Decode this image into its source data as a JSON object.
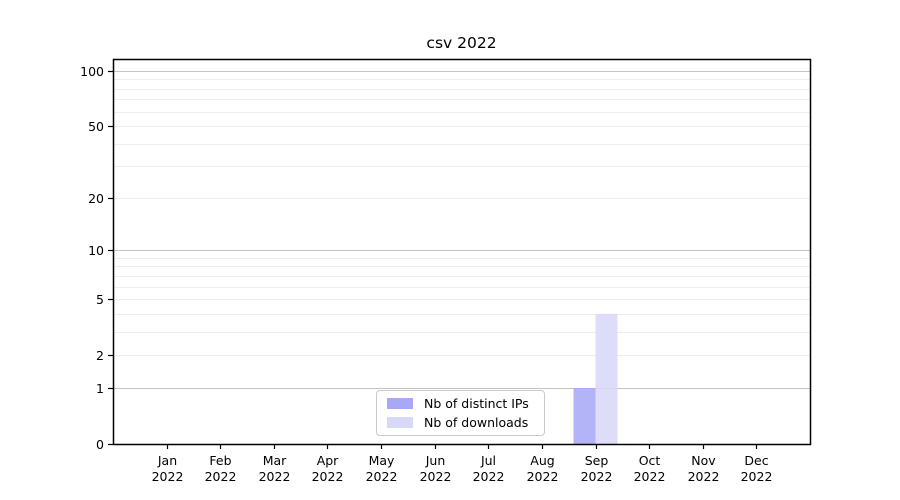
{
  "title": "csv 2022",
  "chart_data": {
    "type": "bar",
    "title": "csv 2022",
    "categories": [
      {
        "month": "Jan",
        "year": "2022"
      },
      {
        "month": "Feb",
        "year": "2022"
      },
      {
        "month": "Mar",
        "year": "2022"
      },
      {
        "month": "Apr",
        "year": "2022"
      },
      {
        "month": "May",
        "year": "2022"
      },
      {
        "month": "Jun",
        "year": "2022"
      },
      {
        "month": "Jul",
        "year": "2022"
      },
      {
        "month": "Aug",
        "year": "2022"
      },
      {
        "month": "Sep",
        "year": "2022"
      },
      {
        "month": "Oct",
        "year": "2022"
      },
      {
        "month": "Nov",
        "year": "2022"
      },
      {
        "month": "Dec",
        "year": "2022"
      }
    ],
    "series": [
      {
        "name": "Nb of distinct IPs",
        "color": "#a8a8f6",
        "values": [
          0,
          0,
          0,
          0,
          0,
          0,
          0,
          0,
          1,
          0,
          0,
          0
        ]
      },
      {
        "name": "Nb of downloads",
        "color": "#d8d8f9",
        "values": [
          0,
          0,
          0,
          0,
          0,
          0,
          0,
          0,
          4,
          0,
          0,
          0
        ]
      }
    ],
    "xlabel": "",
    "ylabel": "",
    "y_scale": "log1p",
    "ylim": [
      0,
      117
    ],
    "y_tick_values": [
      0,
      1,
      2,
      5,
      10,
      20,
      50,
      100
    ],
    "grid": {
      "major_values": [
        1,
        10,
        100
      ],
      "minor_values": [
        2,
        3,
        4,
        5,
        6,
        7,
        8,
        9,
        20,
        30,
        40,
        50,
        60,
        70,
        80,
        90
      ],
      "major_color": "#c3c3c3",
      "minor_color": "#ededed"
    },
    "axis_color": "#000000",
    "legend_position": "lower center"
  }
}
